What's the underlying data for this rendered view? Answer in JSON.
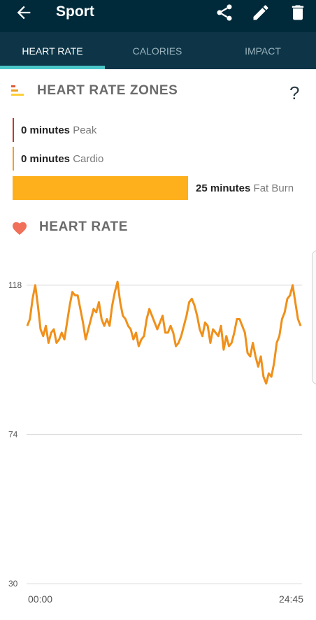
{
  "app_bar": {
    "title": "Sport",
    "back_icon": "arrow-left-icon",
    "actions": [
      "share-icon",
      "edit-icon",
      "delete-icon"
    ],
    "background": "#002a3a"
  },
  "tabs": [
    {
      "label": "HEART RATE",
      "active": true
    },
    {
      "label": "CALORIES",
      "active": false
    },
    {
      "label": "IMPACT",
      "active": false
    }
  ],
  "zones_section": {
    "title": "HEART RATE ZONES",
    "help_label": "?",
    "zones": [
      {
        "minutes": "0 minutes",
        "label": "Peak",
        "color": "#c0392b",
        "value": 0
      },
      {
        "minutes": "0 minutes",
        "label": "Cardio",
        "color": "#f0a020",
        "value": 0
      },
      {
        "minutes": "25 minutes",
        "label": "Fat Burn",
        "color": "#fdb01c",
        "value": 25
      }
    ]
  },
  "heart_rate_section": {
    "title": "HEART RATE",
    "icon": "heart-icon",
    "icon_color": "#f0705a"
  },
  "chart_data": {
    "type": "line",
    "x_labels": [
      "00:00",
      "24:45"
    ],
    "y_ticks": [
      118,
      74,
      30
    ],
    "ylim": [
      30,
      118
    ],
    "grid": true,
    "line_color": "#f0901a",
    "series": [
      {
        "values": [
          106,
          108,
          114,
          118,
          112,
          105,
          103,
          106,
          101,
          104,
          105,
          101,
          102,
          104,
          102,
          107,
          112,
          116,
          115,
          115,
          111,
          107,
          102,
          105,
          108,
          111,
          110,
          113,
          108,
          106,
          108,
          106,
          112,
          116,
          119,
          113,
          109,
          108,
          106,
          105,
          102,
          104,
          100,
          102,
          103,
          108,
          111,
          109,
          107,
          105,
          107,
          109,
          104,
          104,
          106,
          104,
          100,
          101,
          103,
          106,
          109,
          113,
          114,
          112,
          109,
          105,
          103,
          107,
          106,
          101,
          105,
          104,
          103,
          106,
          99,
          103,
          100,
          101,
          104,
          108,
          108,
          106,
          104,
          98,
          97,
          101,
          97,
          94,
          97,
          91,
          89,
          92,
          91,
          95,
          101,
          103,
          108,
          110,
          114,
          115,
          118,
          113,
          108,
          106
        ]
      }
    ]
  }
}
